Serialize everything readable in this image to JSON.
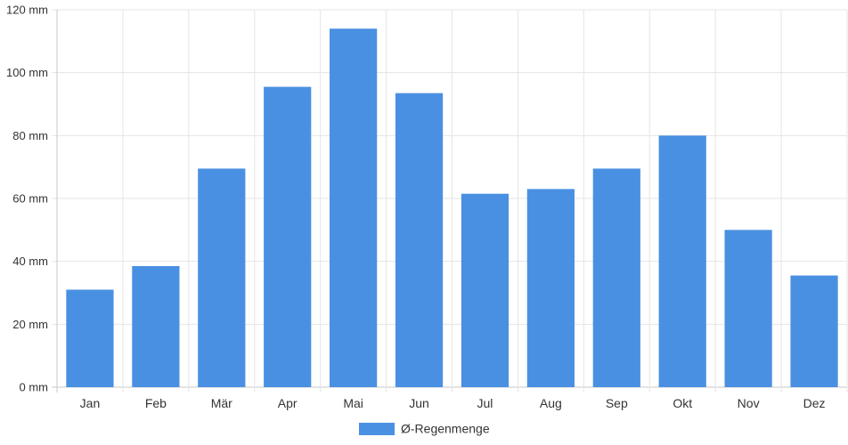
{
  "chart_data": {
    "type": "bar",
    "categories": [
      "Jan",
      "Feb",
      "Mär",
      "Apr",
      "Mai",
      "Jun",
      "Jul",
      "Aug",
      "Sep",
      "Okt",
      "Nov",
      "Dez"
    ],
    "series": [
      {
        "name": "Ø-Regenmenge",
        "values": [
          31,
          38.5,
          69.5,
          95.5,
          114,
          93.5,
          61.5,
          63,
          69.5,
          80,
          50,
          35.5
        ],
        "color": "#4a90e2"
      }
    ],
    "ylim": [
      0,
      120
    ],
    "yticks": [
      0,
      20,
      40,
      60,
      80,
      100,
      120
    ],
    "y_unit": "mm",
    "grid": true,
    "legend": "bottom-center"
  }
}
